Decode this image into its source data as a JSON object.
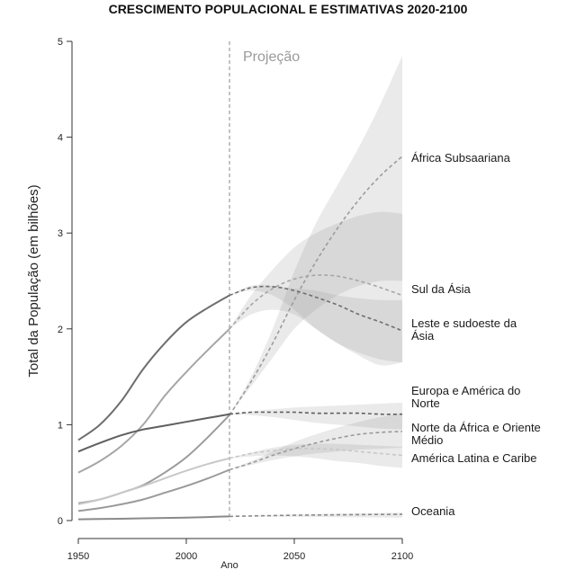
{
  "chart_data": {
    "type": "line",
    "title": "CRESCIMENTO POPULACIONAL E ESTIMATIVAS 2020-2100",
    "xlabel": "Ano",
    "ylabel": "Total da População (em bilhões)",
    "xlim": [
      1950,
      2100
    ],
    "ylim": [
      0,
      5
    ],
    "xticks": [
      1950,
      2000,
      2050,
      2100
    ],
    "yticks": [
      0,
      1,
      2,
      3,
      4,
      5
    ],
    "projection_start": 2020,
    "projection_label": "Projeção",
    "series": [
      {
        "name": "África Subsaariana",
        "label_lines": [
          "África Subsaariana"
        ],
        "color": "#9c9c9c",
        "x": [
          1950,
          1960,
          1970,
          1980,
          1990,
          2000,
          2010,
          2020,
          2030,
          2040,
          2050,
          2060,
          2070,
          2080,
          2090,
          2100
        ],
        "y": [
          0.18,
          0.22,
          0.29,
          0.37,
          0.5,
          0.66,
          0.87,
          1.1,
          1.45,
          1.85,
          2.3,
          2.7,
          3.05,
          3.35,
          3.6,
          3.8
        ],
        "band_lower": [
          1.1,
          1.4,
          1.7,
          2.0,
          2.2,
          2.35,
          2.45,
          2.5,
          2.5
        ],
        "band_upper": [
          1.1,
          1.5,
          2.0,
          2.6,
          3.1,
          3.5,
          3.9,
          4.35,
          4.85
        ]
      },
      {
        "name": "Sul da Ásia",
        "label_lines": [
          "Sul da Ásia"
        ],
        "color": "#a6a6a6",
        "x": [
          1950,
          1960,
          1970,
          1980,
          1990,
          2000,
          2010,
          2020,
          2030,
          2040,
          2050,
          2060,
          2070,
          2080,
          2090,
          2100
        ],
        "y": [
          0.5,
          0.62,
          0.78,
          1.0,
          1.3,
          1.55,
          1.78,
          2.0,
          2.25,
          2.42,
          2.52,
          2.56,
          2.55,
          2.5,
          2.43,
          2.35
        ],
        "band_lower": [
          2.0,
          2.15,
          2.2,
          2.15,
          2.0,
          1.85,
          1.72,
          1.62,
          1.65
        ],
        "band_upper": [
          2.0,
          2.35,
          2.62,
          2.85,
          3.0,
          3.1,
          3.18,
          3.22,
          3.2
        ]
      },
      {
        "name": "Leste e sudoeste da Ásia",
        "label_lines": [
          "Leste e sudoeste da",
          "Ásia"
        ],
        "color": "#6e6e6e",
        "x": [
          1950,
          1960,
          1970,
          1980,
          1990,
          2000,
          2010,
          2020,
          2030,
          2040,
          2050,
          2060,
          2070,
          2080,
          2090,
          2100
        ],
        "y": [
          0.84,
          1.0,
          1.25,
          1.58,
          1.85,
          2.07,
          2.22,
          2.35,
          2.43,
          2.44,
          2.4,
          2.33,
          2.25,
          2.15,
          2.07,
          1.98
        ],
        "band_lower": [
          2.35,
          2.4,
          2.35,
          2.2,
          2.0,
          1.85,
          1.75,
          1.68,
          1.65
        ],
        "band_upper": [
          2.35,
          2.45,
          2.45,
          2.42,
          2.4,
          2.35,
          2.32,
          2.3,
          2.3
        ]
      },
      {
        "name": "Europa e América do Norte",
        "label_lines": [
          "Europa e América do",
          "Norte"
        ],
        "color": "#5f5f5f",
        "x": [
          1950,
          1960,
          1970,
          1980,
          1990,
          2000,
          2010,
          2020,
          2030,
          2040,
          2050,
          2060,
          2070,
          2080,
          2090,
          2100
        ],
        "y": [
          0.72,
          0.81,
          0.89,
          0.95,
          0.99,
          1.03,
          1.07,
          1.11,
          1.13,
          1.13,
          1.13,
          1.12,
          1.12,
          1.12,
          1.11,
          1.11
        ],
        "band_lower": [
          1.11,
          1.1,
          1.08,
          1.05,
          1.02,
          1.0,
          0.98,
          0.96,
          0.95
        ],
        "band_upper": [
          1.11,
          1.14,
          1.16,
          1.18,
          1.19,
          1.2,
          1.21,
          1.22,
          1.23
        ]
      },
      {
        "name": "Norte da África e Oriente Médio",
        "label_lines": [
          "Norte da África e Oriente",
          "Médio"
        ],
        "color": "#9a9a9a",
        "x": [
          1950,
          1960,
          1970,
          1980,
          1990,
          2000,
          2010,
          2020,
          2030,
          2040,
          2050,
          2060,
          2070,
          2080,
          2090,
          2100
        ],
        "y": [
          0.1,
          0.13,
          0.17,
          0.22,
          0.29,
          0.36,
          0.44,
          0.53,
          0.6,
          0.68,
          0.75,
          0.81,
          0.86,
          0.9,
          0.92,
          0.93
        ],
        "band_lower": [
          0.53,
          0.58,
          0.63,
          0.67,
          0.7,
          0.72,
          0.74,
          0.75,
          0.76
        ],
        "band_upper": [
          0.53,
          0.62,
          0.72,
          0.82,
          0.9,
          0.97,
          1.03,
          1.08,
          1.12
        ]
      },
      {
        "name": "América Latina e Caribe",
        "label_lines": [
          "América Latina e Caribe"
        ],
        "color": "#c8c8c8",
        "x": [
          1950,
          1960,
          1970,
          1980,
          1990,
          2000,
          2010,
          2020,
          2030,
          2040,
          2050,
          2060,
          2070,
          2080,
          2090,
          2100
        ],
        "y": [
          0.17,
          0.22,
          0.29,
          0.36,
          0.44,
          0.52,
          0.59,
          0.65,
          0.7,
          0.73,
          0.75,
          0.75,
          0.74,
          0.72,
          0.7,
          0.68
        ],
        "band_lower": [
          0.65,
          0.67,
          0.68,
          0.67,
          0.65,
          0.62,
          0.6,
          0.57,
          0.55
        ],
        "band_upper": [
          0.65,
          0.71,
          0.76,
          0.79,
          0.8,
          0.8,
          0.79,
          0.78,
          0.77
        ]
      },
      {
        "name": "Oceania",
        "label_lines": [
          "Oceania"
        ],
        "color": "#8a8a8a",
        "x": [
          1950,
          1960,
          1970,
          1980,
          1990,
          2000,
          2010,
          2020,
          2030,
          2040,
          2050,
          2060,
          2070,
          2080,
          2090,
          2100
        ],
        "y": [
          0.013,
          0.016,
          0.019,
          0.023,
          0.027,
          0.031,
          0.037,
          0.043,
          0.048,
          0.052,
          0.055,
          0.058,
          0.06,
          0.062,
          0.064,
          0.065
        ],
        "band_lower": [
          0.043,
          0.042,
          0.041,
          0.04,
          0.038,
          0.036,
          0.034,
          0.032,
          0.03
        ],
        "band_upper": [
          0.043,
          0.05,
          0.056,
          0.062,
          0.067,
          0.071,
          0.075,
          0.079,
          0.082
        ]
      }
    ]
  }
}
